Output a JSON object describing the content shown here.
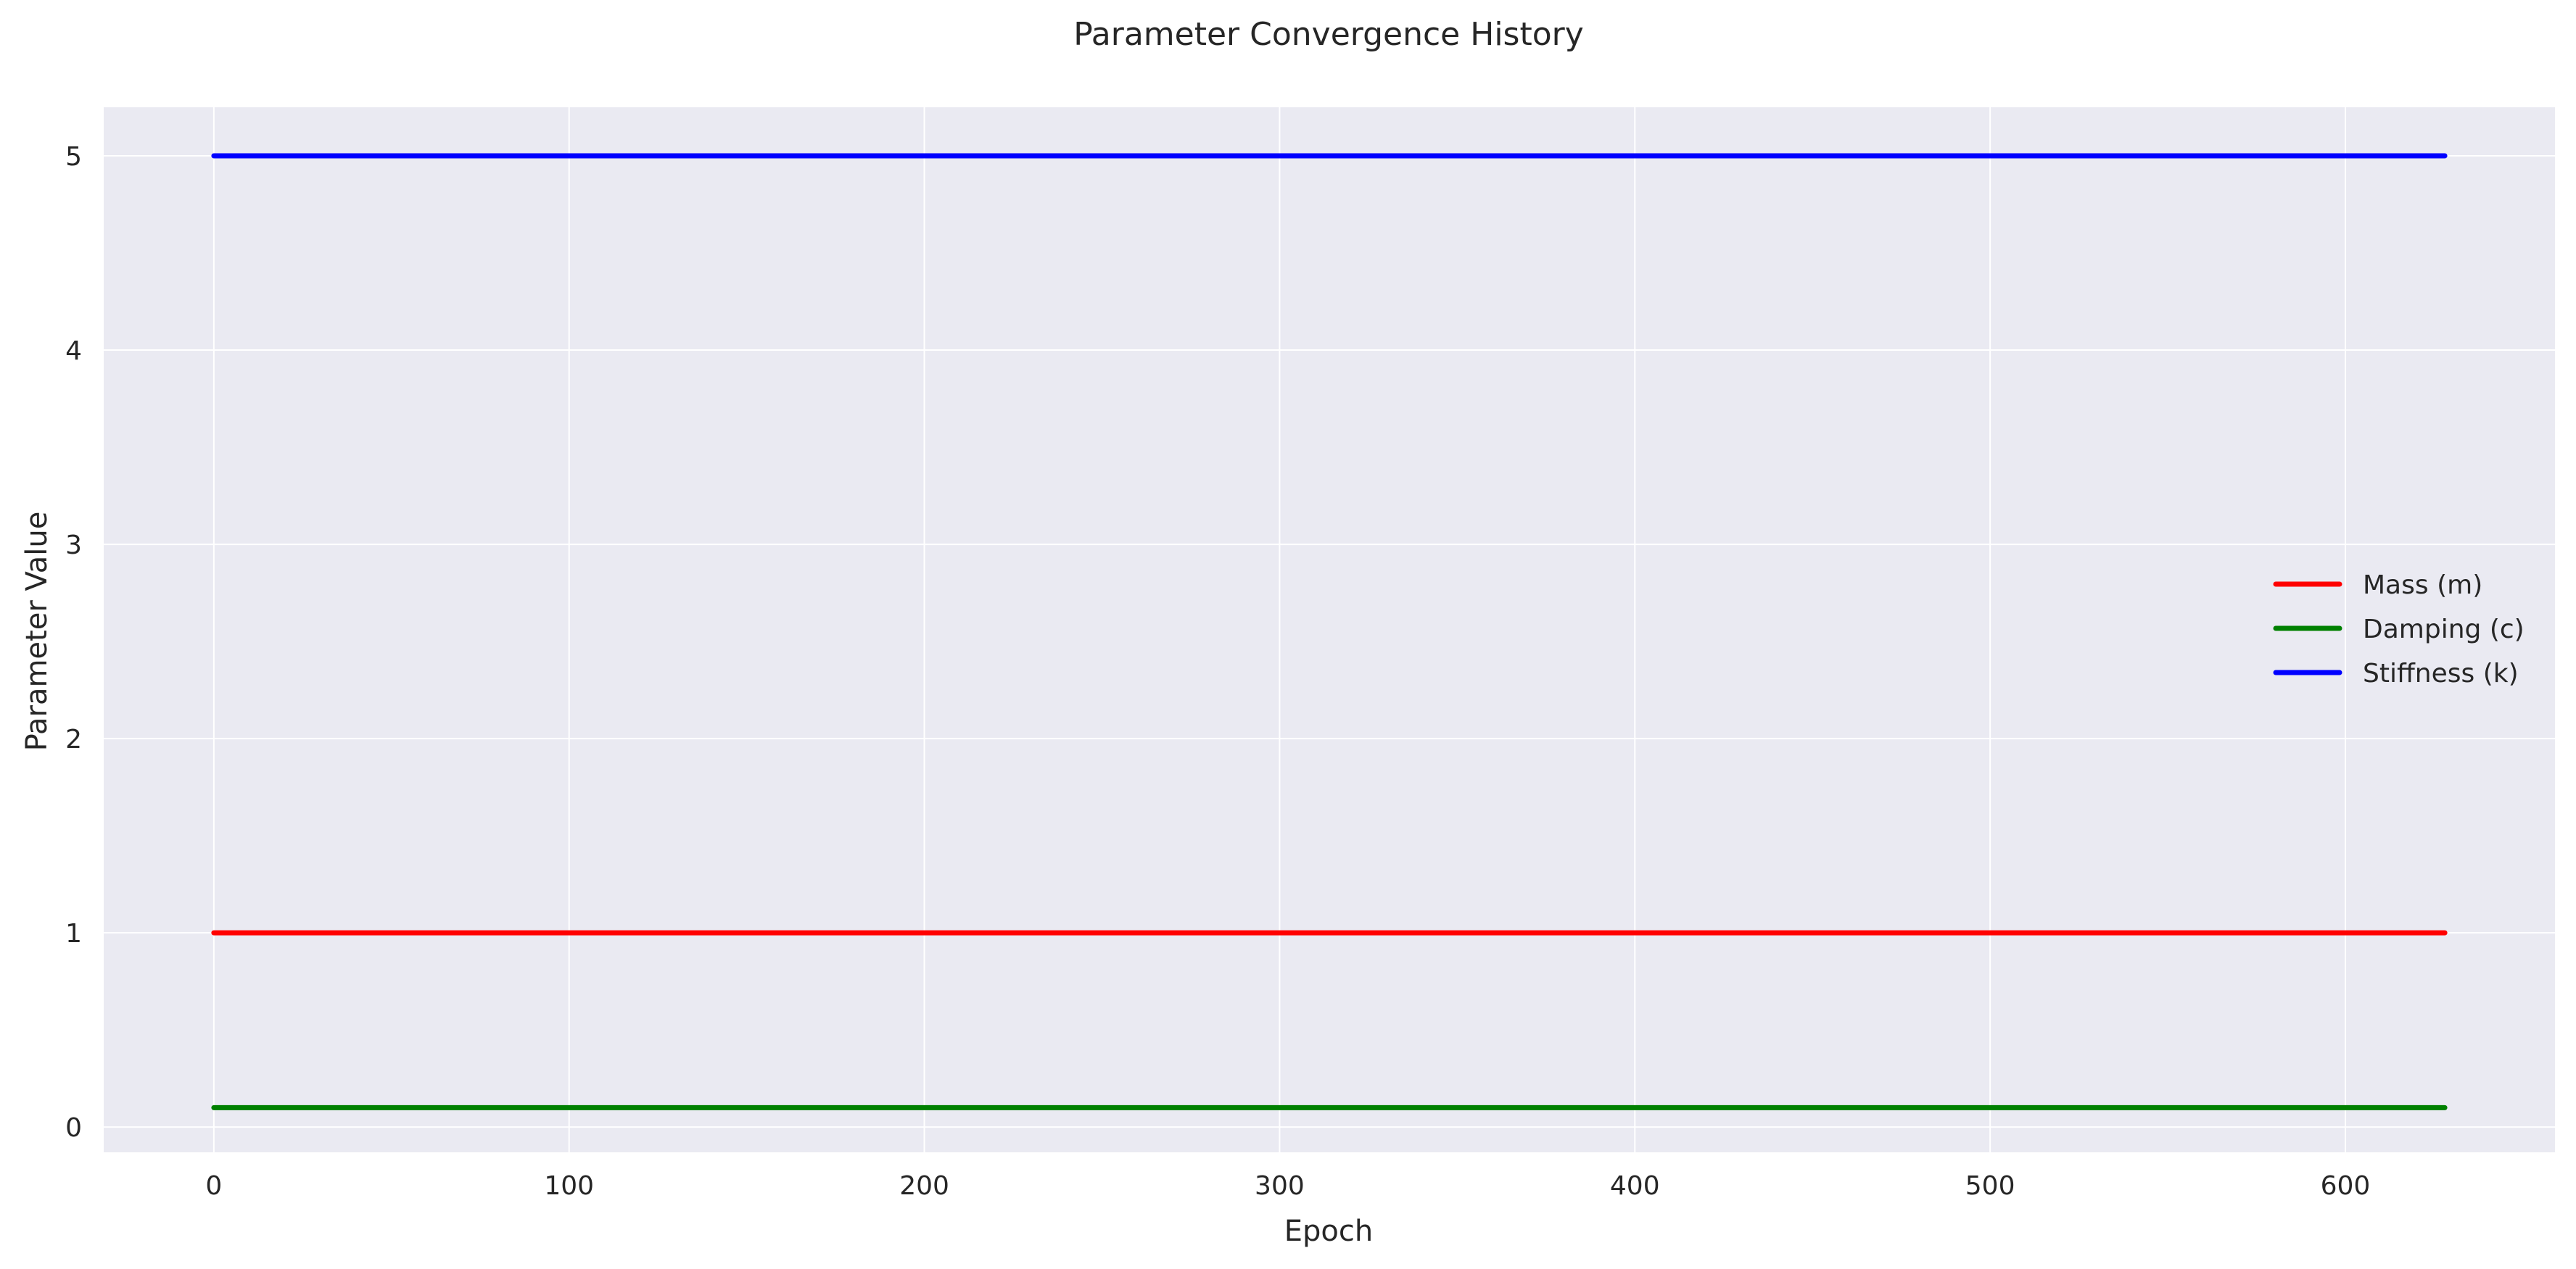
{
  "chart_data": {
    "type": "line",
    "title": "Parameter Convergence History",
    "xlabel": "Epoch",
    "ylabel": "Parameter Value",
    "xlim": [
      -31,
      659
    ],
    "ylim": [
      -0.13,
      5.25
    ],
    "xticks": [
      0,
      100,
      200,
      300,
      400,
      500,
      600
    ],
    "yticks": [
      0,
      1,
      2,
      3,
      4,
      5
    ],
    "grid": true,
    "legend_position": "center-right",
    "background_color": "#eaeaf2",
    "grid_color": "#ffffff",
    "series": [
      {
        "name": "Mass (m)",
        "color": "#ff0000",
        "x": [
          0,
          628
        ],
        "y": [
          1.0,
          1.0
        ]
      },
      {
        "name": "Damping (c)",
        "color": "#008000",
        "x": [
          0,
          628
        ],
        "y": [
          0.1,
          0.1
        ]
      },
      {
        "name": "Stiffness (k)",
        "color": "#0000ff",
        "x": [
          0,
          628
        ],
        "y": [
          5.0,
          5.0
        ]
      }
    ]
  }
}
